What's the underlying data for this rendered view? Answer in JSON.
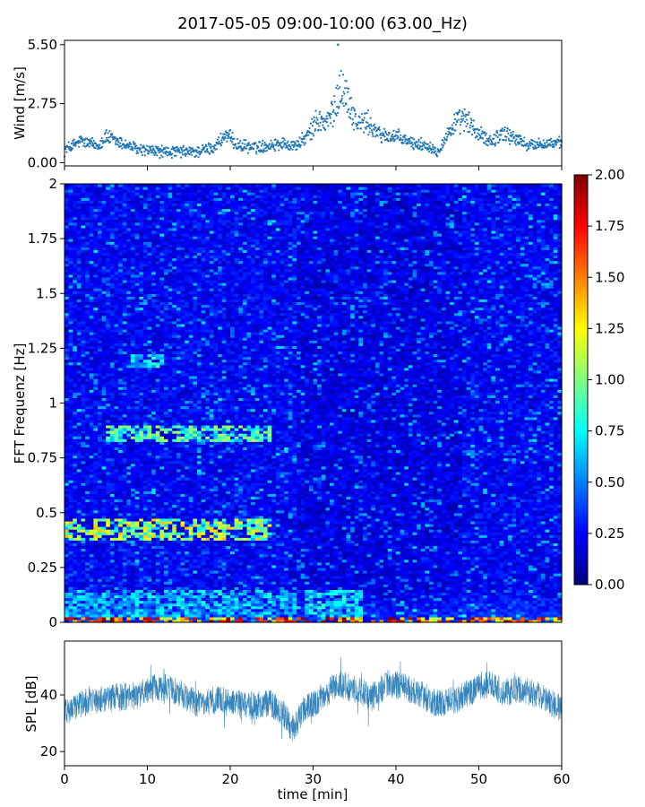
{
  "title": "2017-05-05 09:00-10:00 (63.00_Hz)",
  "chart_data": [
    {
      "type": "scatter",
      "panel": "wind",
      "ylabel": "Wind [m/s]",
      "xlim": [
        0,
        60
      ],
      "ylim": [
        -0.15,
        5.7
      ],
      "yticks": [
        0.0,
        2.75,
        5.5
      ],
      "ytick_labels": [
        "0.00",
        "2.75",
        "5.50"
      ],
      "color": "#1f77b4",
      "wind_profile": {
        "x": [
          0,
          2,
          4,
          5,
          7,
          9,
          12,
          16,
          18,
          19.5,
          21,
          23,
          26,
          28,
          29.5,
          30.5,
          31.5,
          32.5,
          33.3,
          34.2,
          35.3,
          36.5,
          38,
          40,
          42,
          44,
          45,
          47,
          48.5,
          50,
          51.5,
          53,
          54.5,
          56,
          58,
          60
        ],
        "y": [
          0.6,
          1.0,
          0.8,
          1.2,
          0.9,
          0.6,
          0.5,
          0.5,
          0.7,
          1.3,
          0.8,
          0.7,
          0.9,
          0.8,
          1.3,
          2.0,
          1.8,
          2.4,
          3.6,
          3.0,
          1.8,
          1.9,
          1.3,
          1.2,
          0.9,
          0.8,
          0.5,
          1.8,
          2.0,
          1.3,
          1.0,
          1.4,
          1.1,
          0.8,
          0.9,
          0.9
        ]
      },
      "peak": {
        "x": 33.0,
        "y": 5.5
      }
    },
    {
      "type": "heatmap",
      "panel": "spectrogram",
      "ylabel": "FFT Frequenz [Hz]",
      "xlim": [
        0,
        60
      ],
      "ylim": [
        0,
        2
      ],
      "yticks": [
        0,
        0.25,
        0.5,
        0.75,
        1,
        1.25,
        1.5,
        1.75,
        2
      ],
      "ytick_labels": [
        "0",
        "0.25",
        "0.5",
        "0.75",
        "1",
        "1.25",
        "1.5",
        "1.75",
        "2"
      ],
      "colormap": "jet",
      "color_range": [
        0.0,
        2.0
      ],
      "colorbar_ticks": [
        0.0,
        0.25,
        0.5,
        0.75,
        1.0,
        1.25,
        1.5,
        1.75,
        2.0
      ],
      "colorbar_tick_labels": [
        "0.00",
        "0.25",
        "0.50",
        "0.75",
        "1.00",
        "1.25",
        "1.50",
        "1.75",
        "2.00"
      ],
      "features": [
        {
          "t": [
            0,
            60
          ],
          "f": [
            0,
            0.02
          ],
          "value": 1.85,
          "note": "strong low-frequency band"
        },
        {
          "t": [
            0,
            28
          ],
          "f": [
            0.02,
            0.15
          ],
          "value": 0.7
        },
        {
          "t": [
            0,
            25
          ],
          "f": [
            0.38,
            0.48
          ],
          "value": 1.2,
          "note": "harmonic band ~0.45 Hz"
        },
        {
          "t": [
            5,
            25
          ],
          "f": [
            0.82,
            0.9
          ],
          "value": 1.0,
          "note": "harmonic band ~0.85 Hz"
        },
        {
          "t": [
            8,
            12
          ],
          "f": [
            1.16,
            1.22
          ],
          "value": 0.8
        },
        {
          "t": [
            29,
            36
          ],
          "f": [
            0.02,
            0.15
          ],
          "value": 0.75
        }
      ]
    },
    {
      "type": "line",
      "panel": "spl",
      "ylabel": "SPL [dB]",
      "xlabel": "time [min]",
      "xlim": [
        0,
        60
      ],
      "ylim": [
        15,
        59
      ],
      "yticks": [
        20,
        40
      ],
      "ytick_labels": [
        "20",
        "40"
      ],
      "xticks": [
        0,
        10,
        20,
        30,
        40,
        50,
        60
      ],
      "xtick_labels": [
        "0",
        "10",
        "20",
        "30",
        "40",
        "50",
        "60"
      ],
      "color": "#1f77b4",
      "spl_profile": {
        "x": [
          0,
          3,
          6,
          9,
          11,
          13,
          16,
          19,
          22,
          25,
          26.5,
          27.5,
          29,
          31,
          33,
          35,
          37,
          39,
          41,
          43,
          45,
          47,
          49,
          51,
          53,
          55,
          57,
          60
        ],
        "y": [
          34,
          38,
          39,
          40,
          43,
          42,
          37,
          38,
          36,
          37,
          33,
          28,
          35,
          39,
          44,
          42,
          39,
          44,
          43,
          40,
          37,
          38,
          41,
          44,
          41,
          42,
          40,
          35
        ]
      },
      "noise_amplitude_db": 5
    }
  ]
}
